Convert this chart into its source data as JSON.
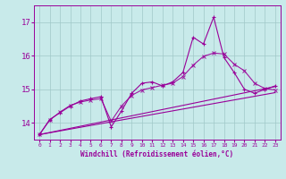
{
  "xlabel": "Windchill (Refroidissement éolien,°C)",
  "x": [
    0,
    1,
    2,
    3,
    4,
    5,
    6,
    7,
    8,
    9,
    10,
    11,
    12,
    13,
    14,
    15,
    16,
    17,
    18,
    19,
    20,
    21,
    22,
    23
  ],
  "series1": [
    13.65,
    14.1,
    14.3,
    14.5,
    14.65,
    14.72,
    14.78,
    13.88,
    14.35,
    14.88,
    15.18,
    15.22,
    15.1,
    15.22,
    15.5,
    16.55,
    16.35,
    17.15,
    15.95,
    15.5,
    15.0,
    14.88,
    15.0,
    15.1
  ],
  "series2": [
    13.65,
    14.08,
    14.32,
    14.52,
    14.62,
    14.68,
    14.72,
    14.05,
    14.5,
    14.82,
    14.98,
    15.05,
    15.12,
    15.18,
    15.38,
    15.72,
    15.98,
    16.08,
    16.05,
    15.75,
    15.55,
    15.18,
    15.02,
    14.98
  ],
  "trend1": [
    13.65,
    15.08
  ],
  "trend2": [
    13.65,
    14.9
  ],
  "ylim": [
    13.5,
    17.5
  ],
  "yticks": [
    14,
    15,
    16,
    17
  ],
  "xlim": [
    -0.5,
    23.5
  ],
  "color": "#990099",
  "bg_color": "#c8eaea",
  "grid_color": "#a0c8c8"
}
